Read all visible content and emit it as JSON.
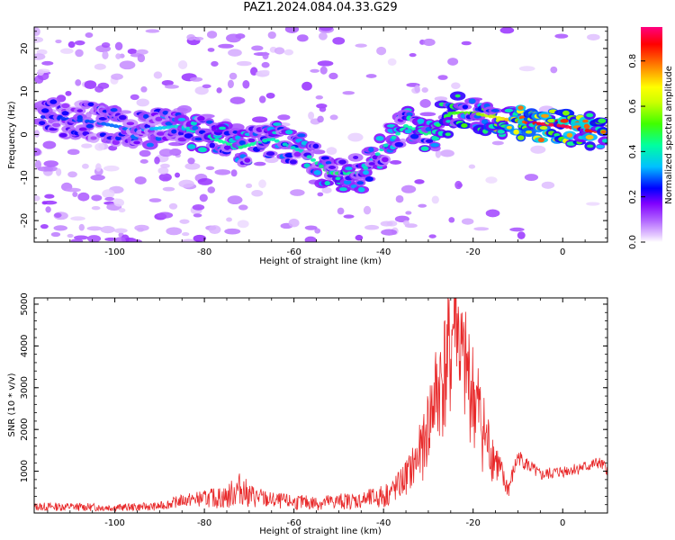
{
  "title": "PAZ1.2024.084.04.33.G29",
  "colors": {
    "snr_line": "#e8292a",
    "spectral_palette": [
      "#ffffff",
      "#e6ccff",
      "#b266ff",
      "#8000ff",
      "#0000ff",
      "#00c0ff",
      "#00ff80",
      "#aaff00",
      "#ffff00",
      "#ff8000",
      "#ff0000",
      "#ff0080"
    ]
  },
  "chart_data": [
    {
      "type": "heatmap",
      "name": "spectrogram",
      "xlabel": "Height of straight line (km)",
      "ylabel": "Frequency (Hz)",
      "xlim": [
        -118,
        10
      ],
      "ylim": [
        -25,
        25
      ],
      "xticks": [
        -100,
        -80,
        -60,
        -40,
        -20,
        0
      ],
      "xtick_labels": [
        "-100",
        "-80",
        "-60",
        "-40",
        "-20",
        "0"
      ],
      "yticks": [
        -20,
        -10,
        0,
        10,
        20
      ],
      "ytick_labels": [
        "-20",
        "-10",
        "0",
        "10",
        "20"
      ],
      "colorbar": {
        "label": "Normalized spectral amplitude",
        "range": [
          0,
          0.95
        ],
        "ticks": [
          0.0,
          0.2,
          0.4,
          0.6,
          0.8
        ],
        "tick_labels": [
          "0.0",
          "0.2",
          "0.4",
          "0.6",
          "0.8"
        ]
      },
      "ridge": [
        {
          "x": -115,
          "y": 4,
          "amp": 0.25
        },
        {
          "x": -105,
          "y": 3,
          "amp": 0.28
        },
        {
          "x": -95,
          "y": 1,
          "amp": 0.3
        },
        {
          "x": -85,
          "y": 2,
          "amp": 0.38
        },
        {
          "x": -78,
          "y": -1,
          "amp": 0.42
        },
        {
          "x": -72,
          "y": -3,
          "amp": 0.45
        },
        {
          "x": -65,
          "y": -1,
          "amp": 0.4
        },
        {
          "x": -58,
          "y": -4,
          "amp": 0.38
        },
        {
          "x": -52,
          "y": -9,
          "amp": 0.48
        },
        {
          "x": -45,
          "y": -9,
          "amp": 0.4
        },
        {
          "x": -40,
          "y": -3,
          "amp": 0.4
        },
        {
          "x": -35,
          "y": 2,
          "amp": 0.42
        },
        {
          "x": -30,
          "y": 0,
          "amp": 0.45
        },
        {
          "x": -25,
          "y": 5,
          "amp": 0.5
        },
        {
          "x": -20,
          "y": 5,
          "amp": 0.55
        },
        {
          "x": -15,
          "y": 4,
          "amp": 0.65
        },
        {
          "x": -10,
          "y": 3,
          "amp": 0.8
        },
        {
          "x": -5,
          "y": 2.5,
          "amp": 0.9
        },
        {
          "x": 0,
          "y": 2,
          "amp": 0.92
        },
        {
          "x": 5,
          "y": 1,
          "amp": 0.88
        },
        {
          "x": 10,
          "y": 0.5,
          "amp": 0.8
        }
      ]
    },
    {
      "type": "line",
      "name": "snr",
      "xlabel": "Height of straight line (km)",
      "ylabel": "SNR (10 * v/v)",
      "xlim": [
        -118,
        10
      ],
      "ylim": [
        0,
        5150
      ],
      "xticks": [
        -100,
        -80,
        -60,
        -40,
        -20,
        0
      ],
      "xtick_labels": [
        "-100",
        "-80",
        "-60",
        "-40",
        "-20",
        "0"
      ],
      "yticks": [
        1000,
        2000,
        3000,
        4000,
        5000
      ],
      "ytick_labels": [
        "1000",
        "2000",
        "3000",
        "4000",
        "5000"
      ],
      "x": [
        -118,
        -110,
        -100,
        -90,
        -85,
        -80,
        -75,
        -72,
        -70,
        -65,
        -60,
        -55,
        -50,
        -45,
        -40,
        -37,
        -34,
        -31,
        -29,
        -27,
        -25,
        -24,
        -23,
        -22,
        -21,
        -20,
        -19,
        -17,
        -15,
        -13,
        -12,
        -10,
        -5,
        0,
        5,
        8,
        10
      ],
      "y": [
        150,
        150,
        130,
        160,
        300,
        350,
        380,
        600,
        420,
        300,
        260,
        240,
        280,
        300,
        400,
        600,
        1000,
        1600,
        2600,
        3200,
        3800,
        5050,
        3900,
        3400,
        3250,
        2800,
        2500,
        1700,
        1300,
        700,
        600,
        1350,
        900,
        1000,
        1100,
        1200,
        1050
      ],
      "noise_amplitude": [
        100,
        100,
        90,
        100,
        150,
        200,
        300,
        400,
        300,
        200,
        180,
        180,
        200,
        200,
        300,
        350,
        500,
        800,
        1200,
        1500,
        1800,
        1500,
        1500,
        1500,
        1500,
        1400,
        1300,
        900,
        600,
        300,
        250,
        200,
        150,
        150,
        150,
        150,
        150
      ]
    }
  ]
}
